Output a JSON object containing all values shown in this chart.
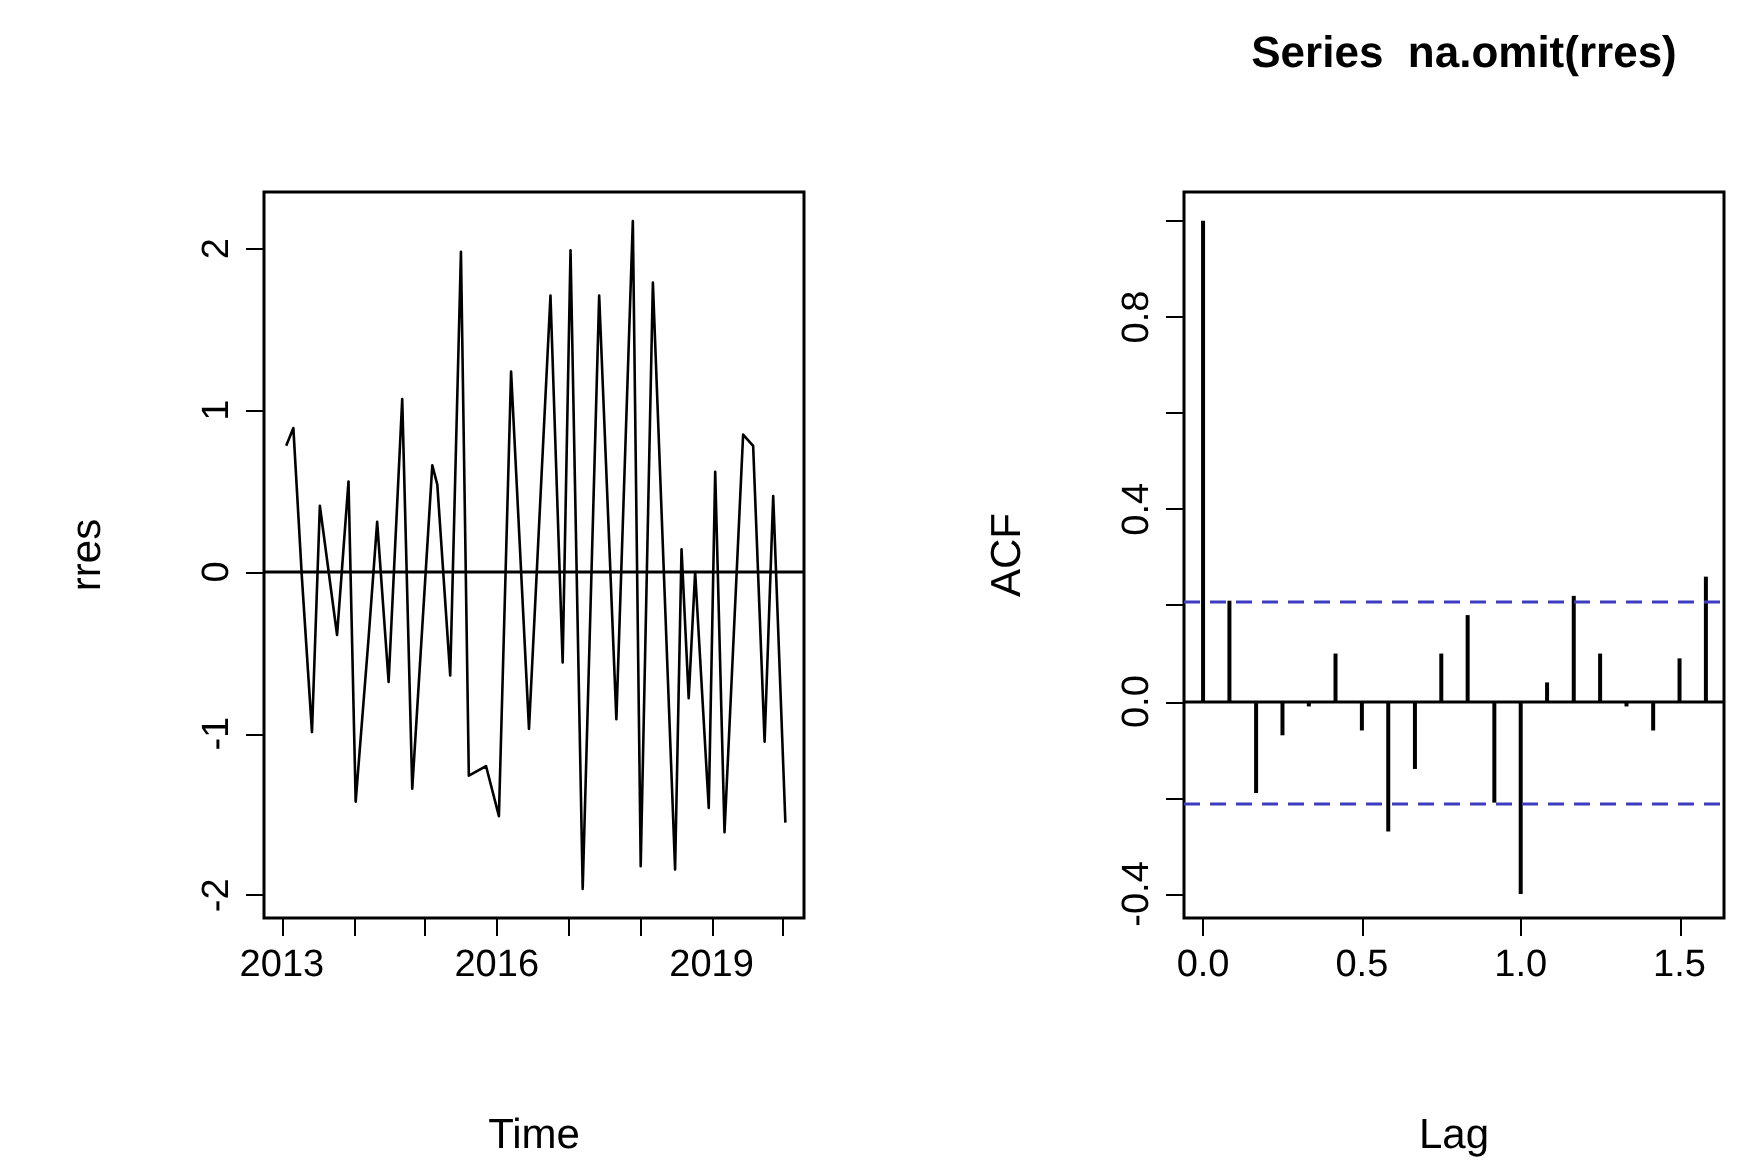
{
  "chart_data": [
    {
      "type": "line",
      "xlabel": "Time",
      "ylabel": "rres",
      "color": "#000000",
      "marker": "none",
      "x": [
        2013.06,
        2013.16,
        2013.28,
        2013.42,
        2013.53,
        2013.77,
        2013.93,
        2014.03,
        2014.21,
        2014.33,
        2014.49,
        2014.68,
        2014.82,
        2015.1,
        2015.17,
        2015.35,
        2015.5,
        2015.61,
        2015.85,
        2016.03,
        2016.2,
        2016.45,
        2016.75,
        2016.92,
        2017.03,
        2017.2,
        2017.43,
        2017.67,
        2017.9,
        2018.01,
        2018.18,
        2018.49,
        2018.58,
        2018.68,
        2018.77,
        2018.96,
        2019.05,
        2019.18,
        2019.44,
        2019.58,
        2019.74,
        2019.86,
        2020.03
      ],
      "values": [
        0.78,
        0.89,
        -0.04,
        -0.99,
        0.41,
        -0.39,
        0.56,
        -1.42,
        -0.41,
        0.31,
        -0.68,
        1.07,
        -1.34,
        0.66,
        0.54,
        -0.64,
        1.98,
        -1.26,
        -1.2,
        -1.51,
        1.24,
        -0.97,
        1.71,
        -0.56,
        1.99,
        -1.96,
        1.71,
        -0.91,
        2.17,
        -1.82,
        1.79,
        -1.84,
        0.14,
        -0.78,
        0.0,
        -1.46,
        0.62,
        -1.61,
        0.85,
        0.78,
        -1.05,
        0.47,
        -1.55
      ],
      "xlim": [
        2012.75,
        2020.29
      ],
      "xticks": [
        {
          "value": 2013,
          "label": "2013"
        },
        {
          "value": 2014,
          "label": null
        },
        {
          "value": 2015,
          "label": null
        },
        {
          "value": 2016,
          "label": "2016"
        },
        {
          "value": 2017,
          "label": null
        },
        {
          "value": 2018,
          "label": null
        },
        {
          "value": 2019,
          "label": "2019"
        },
        {
          "value": 2020,
          "label": null
        }
      ],
      "ylim": [
        -2.14,
        2.35
      ],
      "yticks": [
        -2,
        -1,
        0,
        1,
        2
      ],
      "ref_lines": [
        {
          "axis": "y",
          "value": 0,
          "color": "#000000",
          "line_style": "solid"
        }
      ]
    },
    {
      "type": "bar",
      "title": "Series  na.omit(rres)",
      "xlabel": "Lag",
      "ylabel": "ACF",
      "color": "#000000",
      "x": [
        0,
        0.083,
        0.167,
        0.25,
        0.333,
        0.417,
        0.5,
        0.583,
        0.667,
        0.75,
        0.833,
        0.917,
        1,
        1.083,
        1.167,
        1.25,
        1.333,
        1.417,
        1.5,
        1.583
      ],
      "values": [
        1.0,
        0.21,
        -0.19,
        -0.07,
        -0.01,
        0.1,
        -0.06,
        -0.27,
        -0.14,
        0.1,
        0.18,
        -0.21,
        -0.4,
        0.04,
        0.22,
        0.1,
        -0.01,
        -0.06,
        0.09,
        0.26
      ],
      "xlim": [
        -0.06,
        1.64
      ],
      "xticks": [
        {
          "value": 0,
          "label": "0.0"
        },
        {
          "value": 0.5,
          "label": "0.5"
        },
        {
          "value": 1,
          "label": "1.0"
        },
        {
          "value": 1.5,
          "label": "1.5"
        }
      ],
      "ylim": [
        -0.45,
        1.06
      ],
      "yticks": [
        {
          "value": -0.4,
          "label": "-0.4"
        },
        {
          "value": -0.2,
          "label": null
        },
        {
          "value": 0,
          "label": "0.0"
        },
        {
          "value": 0.2,
          "label": null
        },
        {
          "value": 0.4,
          "label": "0.4"
        },
        {
          "value": 0.6,
          "label": null
        },
        {
          "value": 0.8,
          "label": "0.8"
        },
        {
          "value": 1,
          "label": null
        }
      ],
      "ref_lines": [
        {
          "axis": "y",
          "value": 0,
          "color": "#000000",
          "line_style": "solid"
        },
        {
          "axis": "y",
          "value": 0.21,
          "color": "#3c3cc0",
          "line_style": "dashed"
        },
        {
          "axis": "y",
          "value": -0.21,
          "color": "#3c3cc0",
          "line_style": "dashed"
        }
      ]
    }
  ]
}
